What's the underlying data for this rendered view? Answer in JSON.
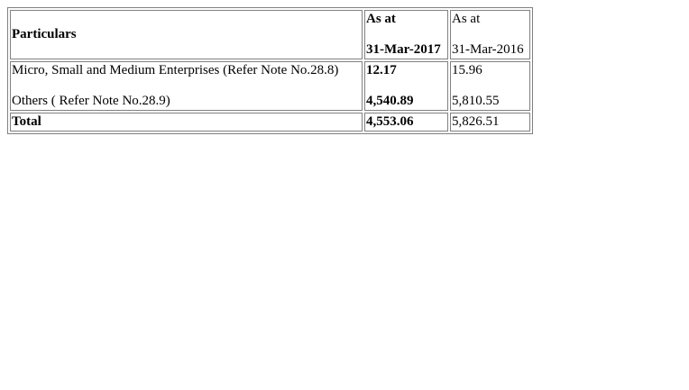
{
  "table": {
    "header": {
      "particulars": "Particulars",
      "col1_line1": "As at",
      "col1_line2": "31-Mar-2017",
      "col2_line1": "As at",
      "col2_line2": "31-Mar-2016"
    },
    "rows": [
      {
        "label": "Micro, Small and Medium Enterprises (Refer Note No.28.8)",
        "v2017": "12.17",
        "v2016": "15.96"
      },
      {
        "label": "Others ( Refer Note No.28.9)",
        "v2017": "4,540.89",
        "v2016": "5,810.55"
      }
    ],
    "total": {
      "label": "Total",
      "v2017": "4,553.06",
      "v2016": "5,826.51"
    }
  }
}
